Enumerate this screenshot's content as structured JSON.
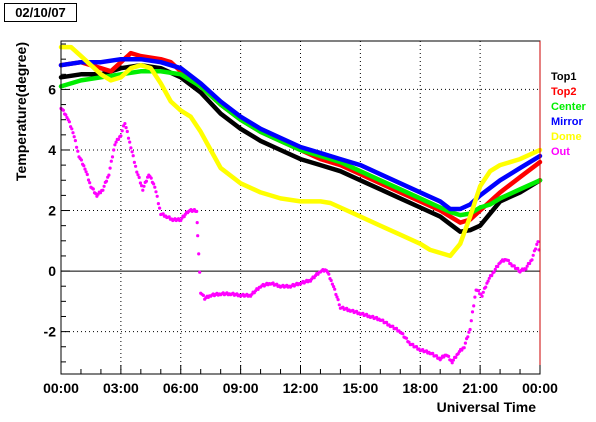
{
  "date_label": "02/10/07",
  "chart_data": {
    "type": "line",
    "title": "",
    "xlabel": "Universal Time",
    "ylabel": "Temperature(degree)",
    "xlim": [
      0,
      24
    ],
    "ylim": [
      -3.4,
      7.6
    ],
    "grid": true,
    "legend_placement": "right",
    "x_ticks": [
      0,
      3,
      6,
      9,
      12,
      15,
      18,
      21,
      24
    ],
    "x_tick_labels": [
      "00:00",
      "03:00",
      "06:00",
      "09:00",
      "12:00",
      "15:00",
      "18:00",
      "21:00",
      "00:00"
    ],
    "y_ticks": [
      -2,
      0,
      2,
      4,
      6
    ],
    "y_tick_labels": [
      "-2",
      "0",
      "2",
      "4",
      "6"
    ],
    "series": [
      {
        "name": "Top1",
        "color": "#000000",
        "x": [
          0,
          1,
          2,
          2.5,
          3,
          4,
          5,
          6,
          7,
          8,
          9,
          10,
          11,
          12,
          13,
          14,
          15,
          16,
          17,
          18,
          19,
          19.5,
          20,
          20.5,
          21,
          21.5,
          22,
          23,
          24
        ],
        "y": [
          6.4,
          6.5,
          6.5,
          6.6,
          6.7,
          6.8,
          6.7,
          6.4,
          5.9,
          5.2,
          4.7,
          4.3,
          4.0,
          3.7,
          3.5,
          3.3,
          3.0,
          2.7,
          2.4,
          2.1,
          1.8,
          1.55,
          1.3,
          1.35,
          1.5,
          1.9,
          2.3,
          2.6,
          3.0
        ]
      },
      {
        "name": "Top2",
        "color": "#ff0000",
        "x": [
          0,
          1,
          2,
          2.5,
          3,
          3.5,
          4,
          5,
          5.5,
          6,
          7,
          8,
          9,
          10,
          11,
          12,
          13,
          14,
          15,
          16,
          17,
          18,
          19,
          19.5,
          20,
          20.5,
          21,
          22,
          23,
          24
        ],
        "y": [
          6.8,
          6.9,
          6.7,
          6.6,
          6.9,
          7.2,
          7.1,
          7.0,
          6.9,
          6.6,
          6.1,
          5.5,
          5.0,
          4.6,
          4.3,
          4.0,
          3.7,
          3.5,
          3.2,
          2.9,
          2.6,
          2.3,
          2.0,
          1.8,
          1.6,
          1.7,
          2.0,
          2.6,
          3.1,
          3.6
        ]
      },
      {
        "name": "Center",
        "color": "#00ee00",
        "x": [
          0,
          1,
          2,
          3,
          4,
          5,
          6,
          7,
          8,
          9,
          10,
          11,
          12,
          13,
          14,
          15,
          16,
          17,
          18,
          19,
          19.5,
          20,
          20.5,
          21,
          21.5,
          22,
          23,
          24
        ],
        "y": [
          6.1,
          6.3,
          6.4,
          6.5,
          6.6,
          6.6,
          6.5,
          6.1,
          5.5,
          5.0,
          4.6,
          4.3,
          4.0,
          3.8,
          3.6,
          3.3,
          3.0,
          2.7,
          2.4,
          2.1,
          1.95,
          1.85,
          1.9,
          2.1,
          2.2,
          2.4,
          2.7,
          3.0
        ]
      },
      {
        "name": "Mirror",
        "color": "#0000ff",
        "x": [
          0,
          1,
          2,
          3,
          4,
          5,
          6,
          7,
          8,
          9,
          10,
          11,
          12,
          13,
          14,
          15,
          16,
          17,
          18,
          19,
          19.5,
          20,
          20.5,
          21,
          22,
          23,
          24
        ],
        "y": [
          6.8,
          6.9,
          6.9,
          7.0,
          7.0,
          6.9,
          6.7,
          6.2,
          5.6,
          5.1,
          4.7,
          4.4,
          4.1,
          3.9,
          3.7,
          3.5,
          3.2,
          2.9,
          2.6,
          2.3,
          2.05,
          2.05,
          2.2,
          2.5,
          3.0,
          3.4,
          3.8
        ]
      },
      {
        "name": "Dome",
        "color": "#ffff00",
        "x": [
          0,
          0.5,
          1,
          1.5,
          2,
          2.5,
          3,
          3.5,
          4,
          4.5,
          5,
          5.5,
          6,
          6.5,
          7,
          7.5,
          8,
          9,
          10,
          11,
          12,
          13,
          13.5,
          14,
          15,
          16,
          17,
          18,
          18.5,
          19,
          19.5,
          20,
          20.5,
          21,
          21.5,
          22,
          23,
          24
        ],
        "y": [
          7.4,
          7.4,
          7.1,
          6.8,
          6.5,
          6.3,
          6.4,
          6.7,
          6.8,
          6.7,
          6.2,
          5.6,
          5.3,
          5.1,
          4.6,
          4.0,
          3.4,
          2.9,
          2.6,
          2.4,
          2.3,
          2.3,
          2.25,
          2.1,
          1.8,
          1.5,
          1.2,
          0.9,
          0.7,
          0.6,
          0.5,
          0.9,
          1.8,
          2.8,
          3.3,
          3.5,
          3.7,
          4.0
        ]
      },
      {
        "name": "Out",
        "color": "#ff00ff",
        "x": [
          0,
          0.3,
          0.6,
          0.9,
          1.2,
          1.5,
          1.8,
          2.1,
          2.4,
          2.7,
          3.0,
          3.2,
          3.5,
          3.8,
          4.1,
          4.4,
          4.7,
          5.0,
          5.3,
          5.6,
          6.0,
          6.4,
          6.8,
          6.85,
          7.0,
          7.2,
          7.5,
          8.0,
          8.5,
          9.0,
          9.5,
          10.0,
          10.5,
          11.0,
          11.5,
          12.0,
          12.5,
          13.0,
          13.3,
          13.6,
          14.0,
          14.5,
          15.0,
          15.5,
          16.0,
          16.5,
          17.0,
          17.5,
          18.0,
          18.5,
          19.0,
          19.3,
          19.6,
          19.9,
          20.2,
          20.5,
          20.8,
          21.1,
          21.4,
          21.7,
          22.0,
          22.3,
          22.6,
          23.0,
          23.3,
          23.6,
          23.9,
          24.0
        ],
        "y": [
          5.4,
          5.1,
          4.6,
          3.8,
          3.4,
          2.8,
          2.5,
          2.7,
          3.2,
          4.2,
          4.5,
          4.9,
          4.1,
          3.3,
          2.7,
          3.2,
          2.8,
          1.9,
          1.8,
          1.7,
          1.7,
          2.0,
          2.0,
          1.2,
          -0.7,
          -0.9,
          -0.8,
          -0.75,
          -0.75,
          -0.8,
          -0.8,
          -0.5,
          -0.4,
          -0.5,
          -0.5,
          -0.4,
          -0.3,
          0.0,
          0.05,
          -0.4,
          -1.2,
          -1.3,
          -1.4,
          -1.5,
          -1.6,
          -1.8,
          -2.0,
          -2.4,
          -2.6,
          -2.7,
          -2.9,
          -2.75,
          -3.0,
          -2.7,
          -2.5,
          -1.9,
          -0.6,
          -0.8,
          -0.3,
          0.0,
          0.3,
          0.4,
          0.2,
          0.0,
          0.1,
          0.4,
          1.0,
          0.4
        ]
      }
    ]
  }
}
